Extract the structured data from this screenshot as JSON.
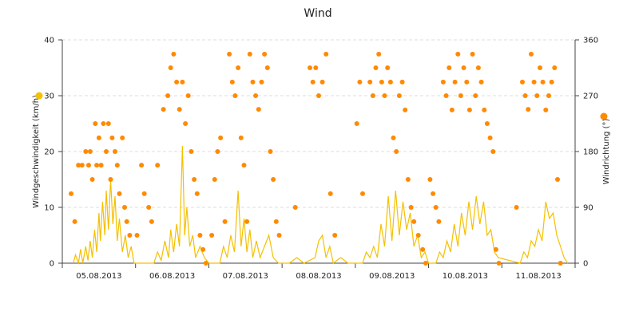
{
  "chart_data": {
    "type": "line",
    "title": "Wind",
    "x_tick_labels": [
      "05.08.2013",
      "06.08.2013",
      "07.08.2013",
      "08.08.2013",
      "09.08.2013",
      "10.08.2013",
      "11.08.2013"
    ],
    "xlim_days": [
      0.0,
      7.0
    ],
    "left_axis": {
      "label": "Windgeschwindigkeit (km/h)",
      "ylim": [
        0,
        40
      ],
      "ticks": [
        "0",
        "10",
        "20",
        "30",
        "40"
      ]
    },
    "right_axis": {
      "label": "Windrichtung (°)",
      "ylim": [
        0,
        360
      ],
      "ticks": [
        "0",
        "90",
        "180",
        "270",
        "360"
      ]
    },
    "grid": true,
    "legend": "side markers",
    "colors": {
      "speed": "#f5c000",
      "direction": "#ff8a00",
      "grid": "#dddddd"
    },
    "series": [
      {
        "type": "line",
        "axis": "left",
        "values_day_offset_kmh": [
          [
            0.15,
            0
          ],
          [
            0.18,
            1.5
          ],
          [
            0.22,
            0
          ],
          [
            0.25,
            2.5
          ],
          [
            0.28,
            0
          ],
          [
            0.32,
            3
          ],
          [
            0.35,
            0.5
          ],
          [
            0.38,
            4
          ],
          [
            0.41,
            1
          ],
          [
            0.44,
            6
          ],
          [
            0.47,
            2
          ],
          [
            0.5,
            9
          ],
          [
            0.52,
            4
          ],
          [
            0.55,
            11
          ],
          [
            0.58,
            5
          ],
          [
            0.6,
            13
          ],
          [
            0.63,
            6
          ],
          [
            0.66,
            15
          ],
          [
            0.69,
            7
          ],
          [
            0.72,
            12
          ],
          [
            0.75,
            4
          ],
          [
            0.78,
            8
          ],
          [
            0.82,
            2
          ],
          [
            0.86,
            5
          ],
          [
            0.9,
            1
          ],
          [
            0.94,
            3
          ],
          [
            0.98,
            0
          ],
          [
            1.25,
            0
          ],
          [
            1.3,
            2
          ],
          [
            1.35,
            0.5
          ],
          [
            1.4,
            4
          ],
          [
            1.45,
            1
          ],
          [
            1.48,
            6
          ],
          [
            1.52,
            2
          ],
          [
            1.56,
            7
          ],
          [
            1.6,
            3
          ],
          [
            1.64,
            21
          ],
          [
            1.67,
            5
          ],
          [
            1.7,
            10
          ],
          [
            1.74,
            3
          ],
          [
            1.78,
            5
          ],
          [
            1.82,
            1
          ],
          [
            1.88,
            3
          ],
          [
            1.94,
            1
          ],
          [
            2.0,
            0
          ],
          [
            2.15,
            0
          ],
          [
            2.2,
            3
          ],
          [
            2.25,
            1
          ],
          [
            2.3,
            5
          ],
          [
            2.35,
            2
          ],
          [
            2.4,
            13
          ],
          [
            2.44,
            3
          ],
          [
            2.48,
            8
          ],
          [
            2.52,
            2
          ],
          [
            2.56,
            6
          ],
          [
            2.6,
            1
          ],
          [
            2.65,
            4
          ],
          [
            2.7,
            1
          ],
          [
            2.76,
            3
          ],
          [
            2.82,
            5
          ],
          [
            2.88,
            1
          ],
          [
            2.95,
            0
          ],
          [
            3.1,
            0
          ],
          [
            3.2,
            1
          ],
          [
            3.3,
            0
          ],
          [
            3.45,
            1
          ],
          [
            3.5,
            4
          ],
          [
            3.55,
            5
          ],
          [
            3.6,
            1
          ],
          [
            3.65,
            3
          ],
          [
            3.7,
            0
          ],
          [
            3.8,
            1
          ],
          [
            3.9,
            0
          ],
          [
            4.0,
            0
          ],
          [
            4.1,
            0
          ],
          [
            4.15,
            2
          ],
          [
            4.2,
            1
          ],
          [
            4.25,
            3
          ],
          [
            4.3,
            1
          ],
          [
            4.35,
            7
          ],
          [
            4.4,
            3
          ],
          [
            4.45,
            12
          ],
          [
            4.5,
            4
          ],
          [
            4.55,
            13
          ],
          [
            4.6,
            5
          ],
          [
            4.65,
            11
          ],
          [
            4.7,
            6
          ],
          [
            4.75,
            9
          ],
          [
            4.8,
            3
          ],
          [
            4.85,
            5
          ],
          [
            4.9,
            1
          ],
          [
            4.95,
            2
          ],
          [
            5.0,
            0
          ],
          [
            5.1,
            0
          ],
          [
            5.15,
            2
          ],
          [
            5.2,
            1
          ],
          [
            5.25,
            4
          ],
          [
            5.3,
            2
          ],
          [
            5.35,
            7
          ],
          [
            5.4,
            3
          ],
          [
            5.45,
            9
          ],
          [
            5.5,
            5
          ],
          [
            5.55,
            11
          ],
          [
            5.6,
            6
          ],
          [
            5.65,
            12
          ],
          [
            5.7,
            7
          ],
          [
            5.75,
            11
          ],
          [
            5.8,
            5
          ],
          [
            5.85,
            6
          ],
          [
            5.9,
            2
          ],
          [
            5.95,
            1
          ],
          [
            6.25,
            0
          ],
          [
            6.3,
            2
          ],
          [
            6.35,
            1
          ],
          [
            6.4,
            4
          ],
          [
            6.45,
            3
          ],
          [
            6.5,
            6
          ],
          [
            6.55,
            4
          ],
          [
            6.6,
            11
          ],
          [
            6.65,
            8
          ],
          [
            6.7,
            9
          ],
          [
            6.75,
            5
          ],
          [
            6.8,
            3
          ],
          [
            6.85,
            1
          ],
          [
            6.9,
            0
          ]
        ]
      },
      {
        "type": "scatter",
        "axis": "right",
        "values_day_offset_deg": [
          [
            0.12,
            112
          ],
          [
            0.17,
            67
          ],
          [
            0.22,
            158
          ],
          [
            0.27,
            158
          ],
          [
            0.32,
            180
          ],
          [
            0.36,
            158
          ],
          [
            0.38,
            180
          ],
          [
            0.41,
            135
          ],
          [
            0.45,
            225
          ],
          [
            0.47,
            158
          ],
          [
            0.5,
            202
          ],
          [
            0.53,
            158
          ],
          [
            0.56,
            225
          ],
          [
            0.6,
            180
          ],
          [
            0.63,
            225
          ],
          [
            0.66,
            135
          ],
          [
            0.68,
            202
          ],
          [
            0.72,
            180
          ],
          [
            0.75,
            158
          ],
          [
            0.78,
            112
          ],
          [
            0.82,
            202
          ],
          [
            0.85,
            90
          ],
          [
            0.88,
            67
          ],
          [
            0.92,
            45
          ],
          [
            1.02,
            45
          ],
          [
            1.08,
            158
          ],
          [
            1.12,
            112
          ],
          [
            1.18,
            90
          ],
          [
            1.22,
            67
          ],
          [
            1.3,
            158
          ],
          [
            1.38,
            248
          ],
          [
            1.44,
            270
          ],
          [
            1.48,
            315
          ],
          [
            1.52,
            337
          ],
          [
            1.56,
            292
          ],
          [
            1.6,
            248
          ],
          [
            1.64,
            292
          ],
          [
            1.68,
            225
          ],
          [
            1.72,
            270
          ],
          [
            1.76,
            180
          ],
          [
            1.8,
            135
          ],
          [
            1.84,
            112
          ],
          [
            1.88,
            45
          ],
          [
            1.92,
            22
          ],
          [
            1.96,
            0
          ],
          [
            2.04,
            45
          ],
          [
            2.08,
            135
          ],
          [
            2.12,
            180
          ],
          [
            2.16,
            202
          ],
          [
            2.22,
            67
          ],
          [
            2.28,
            337
          ],
          [
            2.32,
            292
          ],
          [
            2.36,
            270
          ],
          [
            2.4,
            315
          ],
          [
            2.44,
            202
          ],
          [
            2.48,
            158
          ],
          [
            2.52,
            67
          ],
          [
            2.56,
            337
          ],
          [
            2.6,
            292
          ],
          [
            2.64,
            270
          ],
          [
            2.68,
            248
          ],
          [
            2.72,
            292
          ],
          [
            2.76,
            337
          ],
          [
            2.8,
            315
          ],
          [
            2.84,
            180
          ],
          [
            2.88,
            135
          ],
          [
            2.92,
            67
          ],
          [
            2.96,
            45
          ],
          [
            3.18,
            90
          ],
          [
            3.38,
            315
          ],
          [
            3.42,
            292
          ],
          [
            3.46,
            315
          ],
          [
            3.5,
            270
          ],
          [
            3.55,
            292
          ],
          [
            3.6,
            337
          ],
          [
            3.66,
            112
          ],
          [
            3.72,
            45
          ],
          [
            4.02,
            225
          ],
          [
            4.06,
            292
          ],
          [
            4.1,
            112
          ],
          [
            4.2,
            292
          ],
          [
            4.24,
            270
          ],
          [
            4.28,
            315
          ],
          [
            4.32,
            337
          ],
          [
            4.36,
            292
          ],
          [
            4.4,
            270
          ],
          [
            4.44,
            315
          ],
          [
            4.48,
            292
          ],
          [
            4.52,
            202
          ],
          [
            4.56,
            180
          ],
          [
            4.6,
            270
          ],
          [
            4.64,
            292
          ],
          [
            4.68,
            247
          ],
          [
            4.72,
            135
          ],
          [
            4.76,
            90
          ],
          [
            4.8,
            67
          ],
          [
            4.86,
            45
          ],
          [
            4.92,
            22
          ],
          [
            4.96,
            0
          ],
          [
            5.02,
            135
          ],
          [
            5.06,
            112
          ],
          [
            5.1,
            90
          ],
          [
            5.14,
            67
          ],
          [
            5.2,
            292
          ],
          [
            5.24,
            270
          ],
          [
            5.28,
            315
          ],
          [
            5.32,
            247
          ],
          [
            5.36,
            292
          ],
          [
            5.4,
            337
          ],
          [
            5.44,
            270
          ],
          [
            5.48,
            315
          ],
          [
            5.52,
            292
          ],
          [
            5.56,
            247
          ],
          [
            5.6,
            337
          ],
          [
            5.64,
            270
          ],
          [
            5.68,
            315
          ],
          [
            5.72,
            292
          ],
          [
            5.76,
            247
          ],
          [
            5.8,
            225
          ],
          [
            5.84,
            202
          ],
          [
            5.88,
            180
          ],
          [
            5.92,
            22
          ],
          [
            5.96,
            0
          ],
          [
            6.2,
            90
          ],
          [
            6.28,
            292
          ],
          [
            6.32,
            270
          ],
          [
            6.36,
            248
          ],
          [
            6.4,
            337
          ],
          [
            6.44,
            292
          ],
          [
            6.48,
            270
          ],
          [
            6.52,
            315
          ],
          [
            6.56,
            292
          ],
          [
            6.6,
            247
          ],
          [
            6.64,
            270
          ],
          [
            6.68,
            292
          ],
          [
            6.72,
            315
          ],
          [
            6.76,
            135
          ],
          [
            6.8,
            0
          ]
        ]
      }
    ]
  }
}
